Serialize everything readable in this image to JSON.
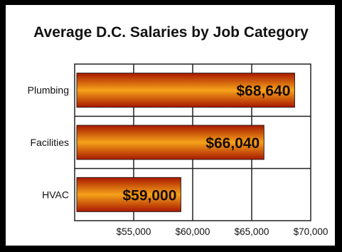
{
  "chart_data": {
    "type": "bar",
    "orientation": "horizontal",
    "title": "Average D.C. Salaries by Job Category",
    "categories": [
      "Plumbing",
      "Facilities",
      "HVAC"
    ],
    "values": [
      68640,
      66040,
      59000
    ],
    "data_labels": [
      "$68,640",
      "$66,040",
      "$59,000"
    ],
    "xlim": [
      50000,
      70000
    ],
    "xticks": [
      55000,
      60000,
      65000,
      70000
    ],
    "xtick_labels": [
      "$55,000",
      "$60,000",
      "$65,000",
      "$70,000"
    ],
    "grid": true,
    "legend": "none",
    "colors": {
      "bar_edge": "#a81800",
      "bar_center": "#f6a21a",
      "bar_outline": "#2b1a10",
      "grid": "#222222"
    }
  }
}
